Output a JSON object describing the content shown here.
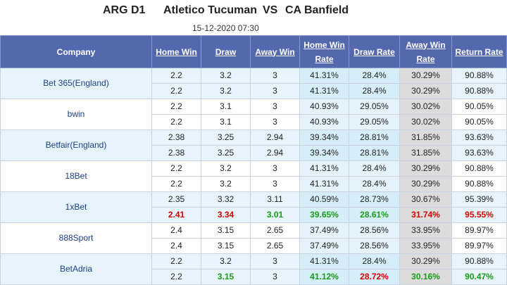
{
  "match": {
    "league": "ARG D1",
    "home_team": "Atletico Tucuman",
    "vs": "VS",
    "away_team": "CA Banfield",
    "datetime": "15-12-2020 07:30"
  },
  "columns": [
    "Company",
    "Home Win",
    "Draw",
    "Away Win",
    "Home Win Rate",
    "Draw Rate",
    "Away Win Rate",
    "Return Rate"
  ],
  "colors": {
    "header_bg": "#5469ad",
    "up": "#d40000",
    "down": "#1a9a1a"
  },
  "bookmakers": [
    {
      "name": "Bet 365(England)",
      "rows": [
        {
          "home": "2.2",
          "draw": "3.2",
          "away": "3",
          "home_rate": "41.31%",
          "draw_rate": "28.4%",
          "away_rate": "30.29%",
          "return_rate": "90.88%"
        },
        {
          "home": "2.2",
          "draw": "3.2",
          "away": "3",
          "home_rate": "41.31%",
          "draw_rate": "28.4%",
          "away_rate": "30.29%",
          "return_rate": "90.88%"
        }
      ]
    },
    {
      "name": "bwin",
      "rows": [
        {
          "home": "2.2",
          "draw": "3.1",
          "away": "3",
          "home_rate": "40.93%",
          "draw_rate": "29.05%",
          "away_rate": "30.02%",
          "return_rate": "90.05%"
        },
        {
          "home": "2.2",
          "draw": "3.1",
          "away": "3",
          "home_rate": "40.93%",
          "draw_rate": "29.05%",
          "away_rate": "30.02%",
          "return_rate": "90.05%"
        }
      ]
    },
    {
      "name": "Betfair(England)",
      "rows": [
        {
          "home": "2.38",
          "draw": "3.25",
          "away": "2.94",
          "home_rate": "39.34%",
          "draw_rate": "28.81%",
          "away_rate": "31.85%",
          "return_rate": "93.63%"
        },
        {
          "home": "2.38",
          "draw": "3.25",
          "away": "2.94",
          "home_rate": "39.34%",
          "draw_rate": "28.81%",
          "away_rate": "31.85%",
          "return_rate": "93.63%"
        }
      ]
    },
    {
      "name": "18Bet",
      "rows": [
        {
          "home": "2.2",
          "draw": "3.2",
          "away": "3",
          "home_rate": "41.31%",
          "draw_rate": "28.4%",
          "away_rate": "30.29%",
          "return_rate": "90.88%"
        },
        {
          "home": "2.2",
          "draw": "3.2",
          "away": "3",
          "home_rate": "41.31%",
          "draw_rate": "28.4%",
          "away_rate": "30.29%",
          "return_rate": "90.88%"
        }
      ]
    },
    {
      "name": "1xBet",
      "rows": [
        {
          "home": "2.35",
          "draw": "3.32",
          "away": "3.11",
          "home_rate": "40.59%",
          "draw_rate": "28.73%",
          "away_rate": "30.67%",
          "return_rate": "95.39%"
        },
        {
          "home": "2.41",
          "draw": "3.34",
          "away": "3.01",
          "home_rate": "39.65%",
          "draw_rate": "28.61%",
          "away_rate": "31.74%",
          "return_rate": "95.55%",
          "style": {
            "home": "red",
            "draw": "red",
            "away": "green",
            "home_rate": "green",
            "draw_rate": "green",
            "away_rate": "red",
            "return_rate": "red"
          }
        }
      ]
    },
    {
      "name": "888Sport",
      "rows": [
        {
          "home": "2.4",
          "draw": "3.15",
          "away": "2.65",
          "home_rate": "37.49%",
          "draw_rate": "28.56%",
          "away_rate": "33.95%",
          "return_rate": "89.97%"
        },
        {
          "home": "2.4",
          "draw": "3.15",
          "away": "2.65",
          "home_rate": "37.49%",
          "draw_rate": "28.56%",
          "away_rate": "33.95%",
          "return_rate": "89.97%"
        }
      ]
    },
    {
      "name": "BetAdria",
      "rows": [
        {
          "home": "2.2",
          "draw": "3.2",
          "away": "3",
          "home_rate": "41.31%",
          "draw_rate": "28.4%",
          "away_rate": "30.29%",
          "return_rate": "90.88%"
        },
        {
          "home": "2.2",
          "draw": "3.15",
          "away": "3",
          "home_rate": "41.12%",
          "draw_rate": "28.72%",
          "away_rate": "30.16%",
          "return_rate": "90.47%",
          "style": {
            "draw": "green",
            "home_rate": "green",
            "draw_rate": "red",
            "away_rate": "green",
            "return_rate": "green"
          }
        }
      ]
    }
  ]
}
